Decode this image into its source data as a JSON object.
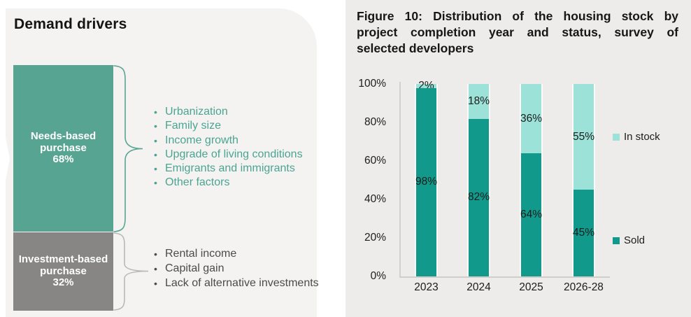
{
  "colors": {
    "panel_left_bg": "#f4f3f1",
    "panel_right_bg": "#edecea",
    "needs_block": "#58a492",
    "invest_block": "#878685",
    "sold_teal": "#119a8c",
    "instock_teal": "#9ce2d9",
    "needs_text": "#4ba492",
    "invest_text": "#4b4b49",
    "brace_needs": "#5aa593",
    "brace_invest": "#b9b8b7"
  },
  "left_panel": {
    "title": "Demand drivers",
    "bar_segments": [
      {
        "lines": [
          "Needs-based",
          "purchase",
          "68%"
        ],
        "name": "Needs-based purchase",
        "value": 68,
        "color": "#58a492"
      },
      {
        "lines": [
          "Investment-based",
          "purchase",
          "32%"
        ],
        "name": "Investment-based purchase",
        "value": 32,
        "color": "#878685"
      }
    ],
    "needs_factors": [
      "Urbanization",
      "Family size",
      "Income growth",
      "Upgrade of living conditions",
      "Emigrants and immigrants",
      "Other factors"
    ],
    "investment_factors": [
      "Rental income",
      "Capital gain",
      "Lack of alternative investments"
    ]
  },
  "chart_data": {
    "type": "bar",
    "stacked": true,
    "title": "Figure 10: Distribution of the housing stock by project completion year and status, survey of selected developers",
    "title_lines": [
      "Figure 10: Distribution of the housing stock by",
      "project completion year and status, survey of",
      "selected developers"
    ],
    "categories": [
      "2023",
      "2024",
      "2025",
      "2026-28"
    ],
    "series": [
      {
        "name": "Sold",
        "color": "#119a8c",
        "values": [
          98,
          82,
          64,
          45
        ],
        "labels": [
          "98%",
          "82%",
          "64%",
          "45%"
        ]
      },
      {
        "name": "In stock",
        "color": "#9ce2d9",
        "values": [
          2,
          18,
          36,
          55
        ],
        "labels": [
          "2%",
          "18%",
          "36%",
          "55%"
        ]
      }
    ],
    "xlabel": "",
    "ylabel": "",
    "ylim": [
      0,
      100
    ],
    "yticks": [
      100,
      80,
      60,
      40,
      20,
      0
    ],
    "ytick_labels": [
      "100%",
      "80%",
      "60%",
      "40%",
      "20%",
      "0%"
    ],
    "grid": false,
    "legend_position": "right",
    "legend": [
      {
        "label": "In stock",
        "color": "#9ce2d9"
      },
      {
        "label": "Sold",
        "color": "#119a8c"
      }
    ]
  }
}
